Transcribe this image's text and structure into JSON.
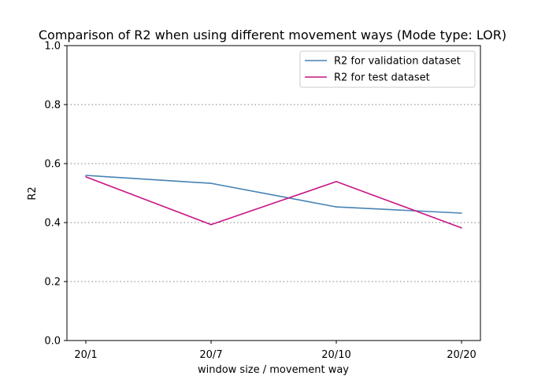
{
  "chart_data": {
    "type": "line",
    "title": "Comparison of R2 when using different movement ways (Mode type: LOR)",
    "xlabel": "window size / movement way",
    "ylabel": "R2",
    "categories": [
      "20/1",
      "20/7",
      "20/10",
      "20/20"
    ],
    "ylim": [
      0.0,
      1.0
    ],
    "yticks": [
      "0.0",
      "0.2",
      "0.4",
      "0.6",
      "0.8",
      "1.0"
    ],
    "grid": "horizontal dotted",
    "legend_position": "top-right",
    "series": [
      {
        "name": "R2 for validation dataset",
        "color": "#4682b4",
        "values": [
          0.56,
          0.533,
          0.453,
          0.432
        ]
      },
      {
        "name": "R2 for test dataset",
        "color": "#c71585",
        "values": [
          0.555,
          0.393,
          0.539,
          0.382
        ]
      }
    ]
  }
}
